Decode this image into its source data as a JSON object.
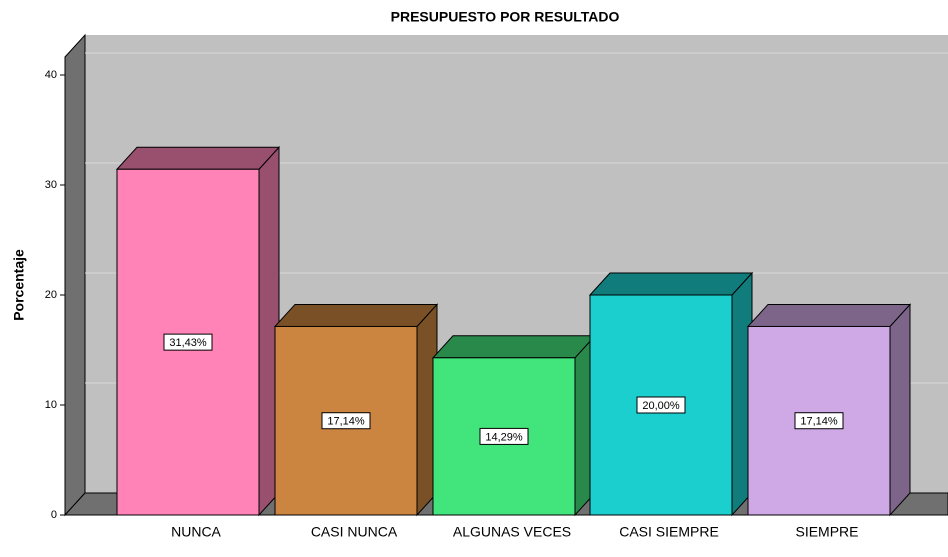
{
  "chart_data": {
    "type": "bar",
    "title": "PRESUPUESTO POR RESULTADO",
    "y_label": "Porcentaje",
    "categories": [
      "NUNCA",
      "CASI NUNCA",
      "ALGUNAS VECES",
      "CASI SIEMPRE",
      "SIEMPRE"
    ],
    "values": [
      31.43,
      17.14,
      14.29,
      20.0,
      17.14
    ],
    "value_labels": [
      "31,43%",
      "17,14%",
      "14,29%",
      "20,00%",
      "17,14%"
    ],
    "colors": [
      "#ff83b7",
      "#cc8540",
      "#42e57c",
      "#1ccfcf",
      "#cfa9e5"
    ],
    "ylim": [
      0,
      40
    ],
    "yticks": [
      0,
      10,
      20,
      30,
      40
    ],
    "grid": true
  }
}
